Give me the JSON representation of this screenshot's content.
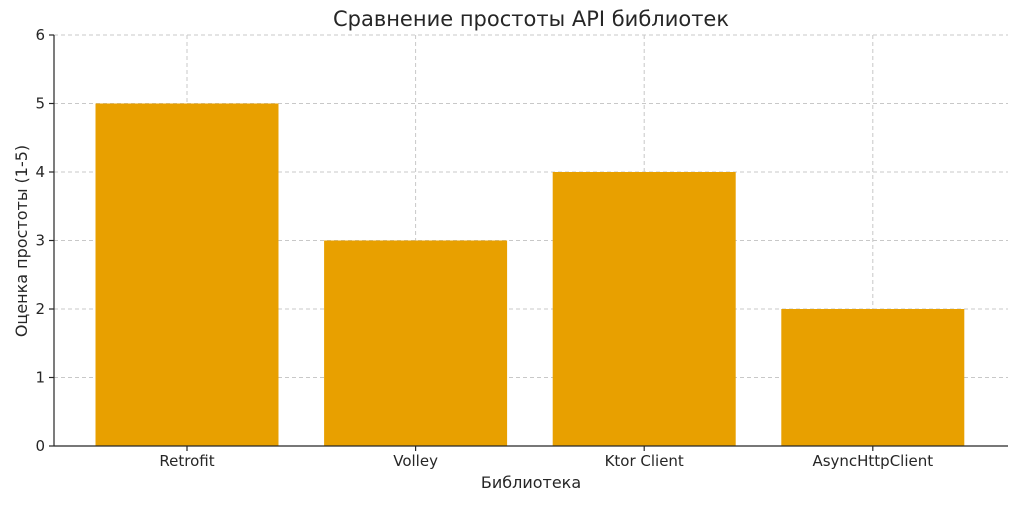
{
  "chart_data": {
    "type": "bar",
    "title": "Сравнение простоты API библиотек",
    "xlabel": "Библиотека",
    "ylabel": "Оценка простоты (1-5)",
    "categories": [
      "Retrofit",
      "Volley",
      "Ktor Client",
      "AsyncHttpClient"
    ],
    "values": [
      5,
      3,
      4,
      2
    ],
    "ylim": [
      0,
      6
    ],
    "yticks": [
      "0",
      "1",
      "2",
      "3",
      "4",
      "5",
      "6"
    ],
    "grid": true,
    "bar_color": "#e8a000"
  }
}
